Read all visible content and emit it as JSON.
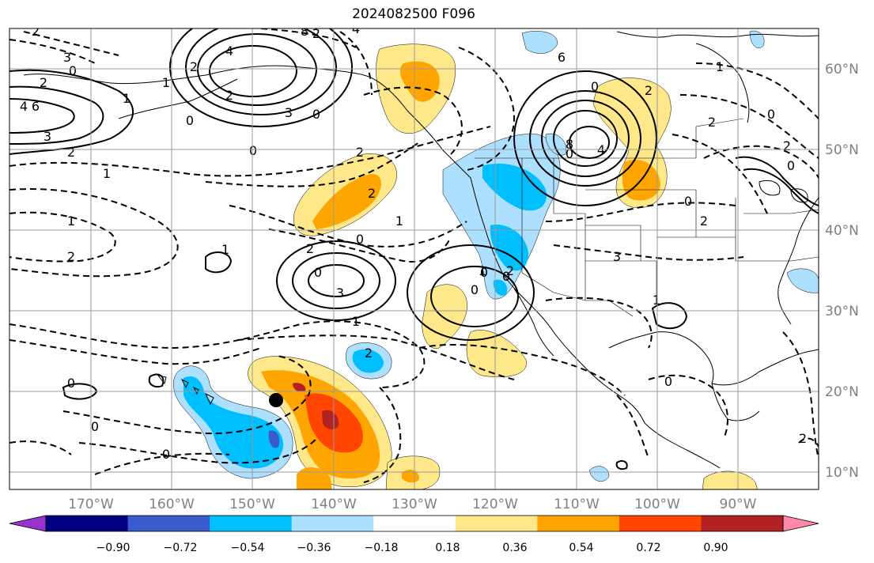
{
  "title": "2024082500 F096",
  "lat_labels": [
    "60°N",
    "50°N",
    "40°N",
    "30°N",
    "20°N",
    "10°N"
  ],
  "lon_labels": [
    "170°W",
    "160°W",
    "150°W",
    "140°W",
    "130°W",
    "120°W",
    "110°W",
    "100°W",
    "90°W"
  ],
  "colorbar": {
    "ticks": [
      "−0.90",
      "−0.72",
      "−0.54",
      "−0.36",
      "−0.18",
      "0.18",
      "0.36",
      "0.54",
      "0.72",
      "0.90"
    ],
    "colors": [
      "#9932CC",
      "#000080",
      "#3A5BCC",
      "#00BFFF",
      "#ADDFFF",
      "#FFFFFF",
      "#FFE88A",
      "#FFA500",
      "#FF4500",
      "#B22222",
      "#FF88AA"
    ]
  },
  "contour_labels": [
    "2",
    "3",
    "0",
    "2",
    "4",
    "1",
    "6",
    "3",
    "2",
    "0",
    "1",
    "2",
    "4",
    "8",
    "3",
    "0",
    "4",
    "2",
    "6",
    "8",
    "2",
    "0",
    "4",
    "2",
    "1",
    "0",
    "2",
    "0",
    "2",
    "2",
    "1",
    "0",
    "2",
    "2",
    "1",
    "0",
    "1",
    "2",
    "3",
    "0",
    "2",
    "1",
    "0",
    "0",
    "0",
    "1",
    "2",
    "1",
    "0",
    "0",
    "2",
    "0",
    "3",
    "1",
    "0",
    "2",
    "0",
    "0"
  ],
  "marker": {
    "label": "",
    "lat": 19,
    "lon": -147
  }
}
